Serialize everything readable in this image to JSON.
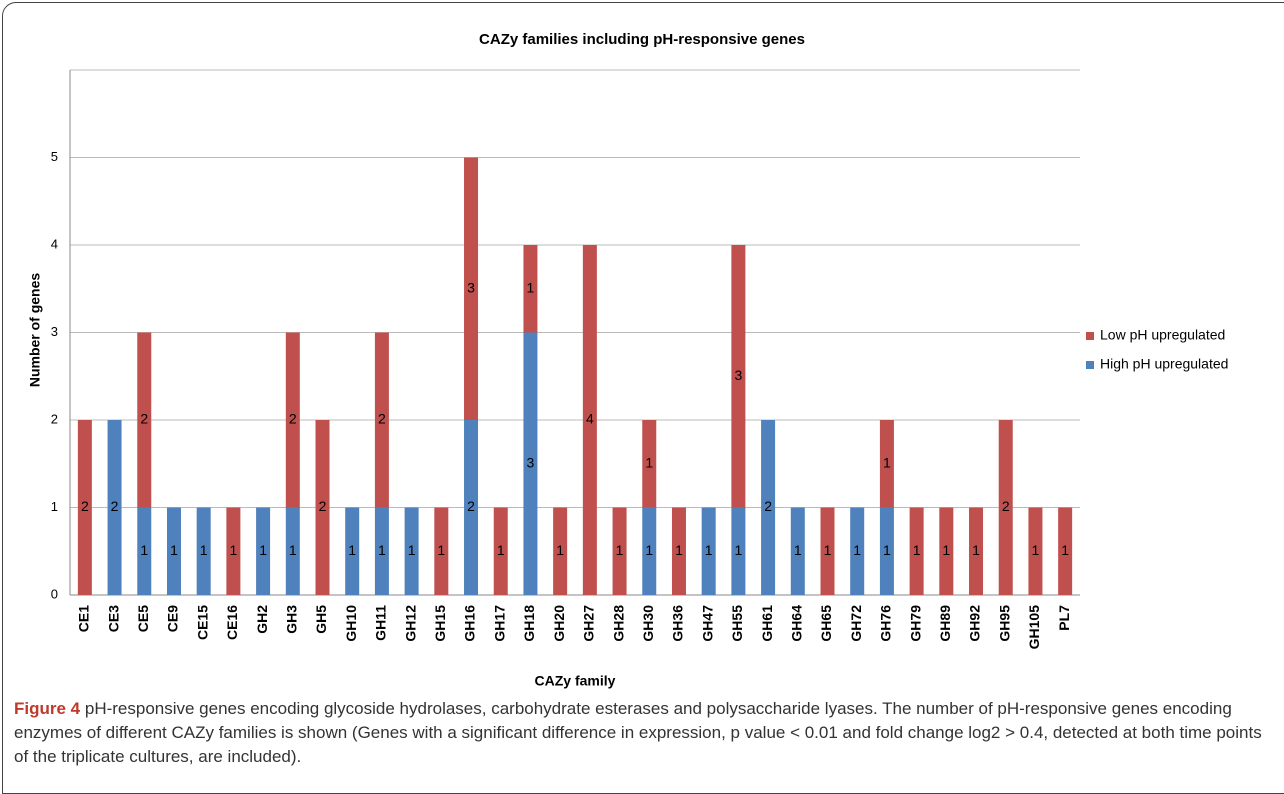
{
  "chart_data": {
    "type": "stacked-bar",
    "title": "CAZy families including pH-responsive genes",
    "x_label": "CAZy family",
    "y_label": "Number of genes",
    "categories": [
      "CE1",
      "CE3",
      "CE5",
      "CE9",
      "CE15",
      "CE16",
      "GH2",
      "GH3",
      "GH5",
      "GH10",
      "GH11",
      "GH12",
      "GH15",
      "GH16",
      "GH17",
      "GH18",
      "GH20",
      "GH27",
      "GH28",
      "GH30",
      "GH36",
      "GH47",
      "GH55",
      "GH61",
      "GH64",
      "GH65",
      "GH72",
      "GH76",
      "GH79",
      "GH89",
      "GH92",
      "GH95",
      "GH105",
      "PL7"
    ],
    "series": [
      {
        "name": "High pH upregulated",
        "color": "#4f81bd",
        "values": [
          0,
          2,
          1,
          1,
          1,
          0,
          1,
          1,
          0,
          1,
          1,
          1,
          0,
          2,
          0,
          3,
          0,
          0,
          0,
          1,
          0,
          1,
          1,
          2,
          1,
          0,
          1,
          1,
          0,
          0,
          0,
          0,
          0,
          0
        ]
      },
      {
        "name": "Low pH upregulated",
        "color": "#c0504d",
        "values": [
          2,
          0,
          2,
          0,
          0,
          1,
          0,
          2,
          2,
          0,
          2,
          0,
          1,
          3,
          1,
          1,
          1,
          4,
          1,
          1,
          1,
          0,
          3,
          0,
          0,
          1,
          0,
          1,
          1,
          1,
          1,
          2,
          1,
          1
        ]
      }
    ],
    "ylim": [
      0,
      6
    ],
    "yticks": [
      0,
      1,
      2,
      3,
      4,
      5
    ],
    "grid": true,
    "legend": "right"
  },
  "caption": {
    "label": "Figure 4",
    "text": "pH-responsive genes encoding glycoside hydrolases, carbohydrate esterases and polysaccharide lyases. The number of pH-responsive genes encoding enzymes of different CAZy families is shown (Genes with a significant difference in expression, p value < 0.01 and fold change log2 > 0.4, detected at both time points of the triplicate cultures, are included)."
  }
}
